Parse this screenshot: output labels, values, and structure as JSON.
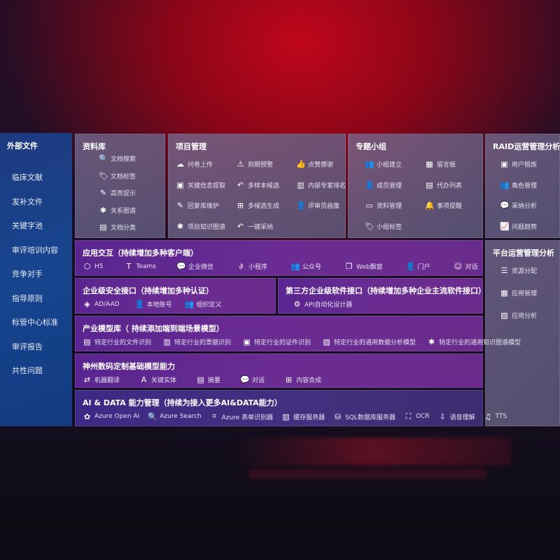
{
  "external": {
    "title": "外部文件",
    "items": [
      "临床文献",
      "发补文件",
      "关键字池",
      "审评培训内容",
      "竞争对手",
      "指导原则",
      "标管中心标准",
      "审评报告",
      "共性问题"
    ]
  },
  "library": {
    "title": "资料库",
    "items": [
      {
        "label": "文档搜索",
        "icon": "document-search-icon",
        "g": "🔍"
      },
      {
        "label": "文档标签",
        "icon": "tag-icon",
        "g": "🏷"
      },
      {
        "label": "高亮提示",
        "icon": "pen-icon",
        "g": "✎"
      },
      {
        "label": "关系图谱",
        "icon": "graph-icon",
        "g": "✱"
      },
      {
        "label": "文档分类",
        "icon": "document-icon",
        "g": "▤"
      }
    ]
  },
  "project": {
    "title": "项目管理",
    "items": [
      {
        "label": "问卷上传",
        "icon": "cloud-upload-icon",
        "g": "☁"
      },
      {
        "label": "到期预警",
        "icon": "alarm-icon",
        "g": "⚠"
      },
      {
        "label": "点赞感谢",
        "icon": "thumbs-up-icon",
        "g": "👍"
      },
      {
        "label": "关键信息提取",
        "icon": "window-icon",
        "g": "▣"
      },
      {
        "label": "多样本候选",
        "icon": "reply-icon",
        "g": "↶"
      },
      {
        "label": "内部专家排名",
        "icon": "ranking-icon",
        "g": "▥"
      },
      {
        "label": "回复库维护",
        "icon": "edit-icon",
        "g": "✎"
      },
      {
        "label": "多候选生成",
        "icon": "puzzle-icon",
        "g": "⊞"
      },
      {
        "label": "评审员画像",
        "icon": "user-icon",
        "g": "👤"
      },
      {
        "label": "项目知识图谱",
        "icon": "graph-icon",
        "g": "✱"
      },
      {
        "label": "一键采纳",
        "icon": "reply-icon",
        "g": "↶"
      }
    ]
  },
  "group": {
    "title": "专题小组",
    "items": [
      {
        "label": "小组建立",
        "icon": "users-icon",
        "g": "👥"
      },
      {
        "label": "留言板",
        "icon": "bbs-icon",
        "g": "▦"
      },
      {
        "label": "成员管理",
        "icon": "user-add-icon",
        "g": "👤"
      },
      {
        "label": "代办列表",
        "icon": "clipboard-icon",
        "g": "▤"
      },
      {
        "label": "资料管理",
        "icon": "folder-icon",
        "g": "▭"
      },
      {
        "label": "事项提醒",
        "icon": "bell-icon",
        "g": "🔔"
      },
      {
        "label": "小组标签",
        "icon": "tag-icon",
        "g": "🏷"
      }
    ]
  },
  "raid": {
    "title": "RAID运营管理分析",
    "items": [
      {
        "label": "用户锻炼",
        "icon": "id-card-icon",
        "g": "▣"
      },
      {
        "label": "角色管理",
        "icon": "users-icon",
        "g": "👥"
      },
      {
        "label": "采纳分析",
        "icon": "qa-icon",
        "g": "💬"
      },
      {
        "label": "问题趋势",
        "icon": "trend-icon",
        "g": "📈"
      }
    ]
  },
  "platform": {
    "title": "平台运营管理分析",
    "items": [
      {
        "label": "资源分配",
        "icon": "checklist-icon",
        "g": "☰"
      },
      {
        "label": "应用管理",
        "icon": "apps-icon",
        "g": "▦"
      },
      {
        "label": "应用分析",
        "icon": "analysis-icon",
        "g": "▨"
      }
    ]
  },
  "interaction": {
    "title": "应用交互（持续增加多种客户端）",
    "items": [
      {
        "label": "H5",
        "icon": "html5-icon",
        "g": "⬡"
      },
      {
        "label": "Teams",
        "icon": "teams-icon",
        "g": "T"
      },
      {
        "label": "企业微信",
        "icon": "wechat-work-icon",
        "g": "💬"
      },
      {
        "label": "小程序",
        "icon": "mini-program-icon",
        "g": "∂"
      },
      {
        "label": "公众号",
        "icon": "official-account-icon",
        "g": "👥"
      },
      {
        "label": "Web飘窗",
        "icon": "window-icon",
        "g": "❐"
      },
      {
        "label": "门户",
        "icon": "portal-icon",
        "g": "👤"
      },
      {
        "label": "对话",
        "icon": "chat-users-icon",
        "g": "☺"
      }
    ]
  },
  "security": {
    "title": "企业级安全接口（持续增加多种认证）",
    "items": [
      {
        "label": "AD/AAD",
        "icon": "diamond-icon",
        "g": "◈"
      },
      {
        "label": "本地账号",
        "icon": "user-account-icon",
        "g": "👤"
      },
      {
        "label": "组织定义",
        "icon": "organization-icon",
        "g": "👥"
      }
    ]
  },
  "thirdparty": {
    "title": "第三方企业级软件接口（持续增加多种企业主流软件接口）",
    "items": [
      {
        "label": "API自动化设计器",
        "icon": "gear-icon",
        "g": "⚙"
      }
    ]
  },
  "industry": {
    "title": "产业模型库（ 持续添加端到端场景模型）",
    "items": [
      {
        "label": "特定行业的文件识别",
        "icon": "file-icon",
        "g": "▤"
      },
      {
        "label": "特定行业的票据识别",
        "icon": "receipt-icon",
        "g": "▥"
      },
      {
        "label": "特定行业的证件识别",
        "icon": "id-card-icon",
        "g": "▣"
      },
      {
        "label": "特定行业的通用数据分析模型",
        "icon": "chart-icon",
        "g": "▨"
      },
      {
        "label": "特定行业的通用知识图谱模型",
        "icon": "graph-icon",
        "g": "✱"
      }
    ]
  },
  "base": {
    "title": "神州数码定制基础模型能力",
    "items": [
      {
        "label": "机器翻译",
        "icon": "translate-icon",
        "g": "⇄"
      },
      {
        "label": "关键实体",
        "icon": "entity-icon",
        "g": "A"
      },
      {
        "label": "摘要",
        "icon": "summary-icon",
        "g": "▤"
      },
      {
        "label": "对话",
        "icon": "chat-icon",
        "g": "💬"
      },
      {
        "label": "内容合成",
        "icon": "puzzle-icon",
        "g": "⊞"
      }
    ]
  },
  "aidata": {
    "title": "AI & DATA 能力管理（持续为接入更多AI&DATA能力）",
    "items": [
      {
        "label": "Azure Open AI",
        "icon": "openai-icon",
        "g": "✿"
      },
      {
        "label": "Azure Search",
        "icon": "search-icon",
        "g": "🔍"
      },
      {
        "label": "Azure 表单识别器",
        "icon": "form-recognizer-icon",
        "g": "⌗"
      },
      {
        "label": "缓存服务器",
        "icon": "cache-server-icon",
        "g": "▥"
      },
      {
        "label": "SQL数据库服务器",
        "icon": "database-icon",
        "g": "⛁"
      },
      {
        "label": "OCR",
        "icon": "ocr-icon",
        "g": "⛶"
      },
      {
        "label": "语音理解",
        "icon": "speech-icon",
        "g": "⇩"
      },
      {
        "label": "TTS",
        "icon": "tts-icon",
        "g": "♫"
      }
    ]
  }
}
